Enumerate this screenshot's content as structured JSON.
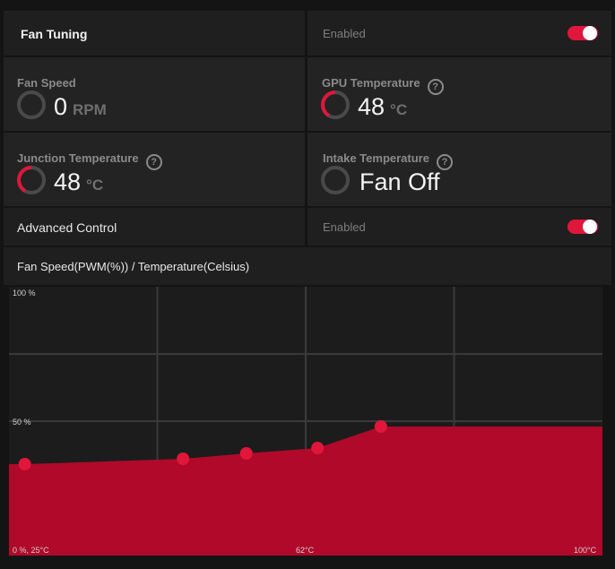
{
  "fan_tuning": {
    "title": "Fan Tuning",
    "status": "Enabled",
    "enabled": true
  },
  "fan_speed": {
    "label": "Fan Speed",
    "value": "0",
    "unit": "RPM"
  },
  "gpu_temp": {
    "label": "GPU Temperature",
    "value": "48",
    "unit": "°C"
  },
  "junction_temp": {
    "label": "Junction Temperature",
    "value": "48",
    "unit": "°C"
  },
  "intake_temp": {
    "label": "Intake Temperature",
    "value": "Fan Off"
  },
  "advanced_control": {
    "title": "Advanced Control",
    "status": "Enabled",
    "enabled": true
  },
  "chart_header": "Fan Speed(PWM(%)) / Temperature(Celsius)",
  "help_symbol": "?",
  "colors": {
    "accent": "#e0173a",
    "fill": "#b0092a",
    "panel": "#232323"
  },
  "chart_data": {
    "type": "area",
    "title": "Fan Speed(PWM(%)) / Temperature(Celsius)",
    "x_ticks": [
      "0 %, 25°C",
      "62°C",
      "100°C"
    ],
    "y_ticks": [
      "100 %",
      "50 %"
    ],
    "xlim": [
      25,
      100
    ],
    "ylim": [
      0,
      100
    ],
    "grid": true,
    "series": [
      {
        "x": [
          27,
          47,
          55,
          64,
          72
        ],
        "y": [
          34,
          36,
          38,
          40,
          48
        ]
      }
    ]
  }
}
